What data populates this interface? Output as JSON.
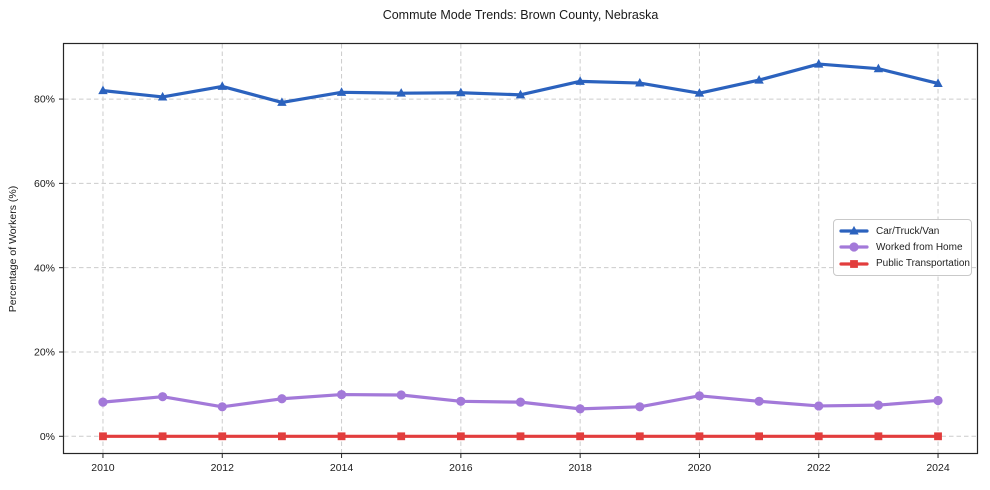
{
  "chart_data": {
    "type": "line",
    "title": "Commute Mode Trends: Brown County, Nebraska",
    "ylabel": "Percentage of Workers (%)",
    "xlabel": "",
    "x": [
      2010,
      2011,
      2012,
      2013,
      2014,
      2015,
      2016,
      2017,
      2018,
      2019,
      2020,
      2021,
      2022,
      2023,
      2024
    ],
    "series": [
      {
        "name": "Car/Truck/Van",
        "color": "#2b62be",
        "marker": "triangle",
        "values": [
          82.0,
          80.5,
          83.0,
          79.2,
          81.6,
          81.4,
          81.5,
          81.0,
          84.2,
          83.8,
          81.4,
          84.5,
          88.3,
          87.2,
          83.7
        ]
      },
      {
        "name": "Worked from Home",
        "color": "#a379d9",
        "marker": "circle",
        "values": [
          8.1,
          9.4,
          7.0,
          8.9,
          9.9,
          9.8,
          8.3,
          8.1,
          6.5,
          7.0,
          9.6,
          8.3,
          7.2,
          7.4,
          8.5
        ]
      },
      {
        "name": "Public Transportation",
        "color": "#e23d3d",
        "marker": "square",
        "values": [
          0.0,
          0.0,
          0.0,
          0.0,
          0.0,
          0.0,
          0.0,
          0.0,
          0.0,
          0.0,
          0.0,
          0.0,
          0.0,
          0.0,
          0.0
        ]
      }
    ],
    "y_tick_values": [
      0,
      20,
      40,
      60,
      80
    ],
    "y_tick_labels": [
      "0%",
      "20%",
      "40%",
      "60%",
      "80%"
    ],
    "x_tick_values": [
      2010,
      2012,
      2014,
      2016,
      2018,
      2020,
      2022,
      2024
    ],
    "x_tick_labels": [
      "2010",
      "2012",
      "2014",
      "2016",
      "2018",
      "2020",
      "2022",
      "2024"
    ],
    "ylim": [
      -4.2,
      93.3
    ],
    "xlim": [
      2009.33,
      2024.67
    ],
    "grid": true,
    "legend_position": "center-right",
    "colors": {
      "grid": "#cccccc",
      "axis": "#262626",
      "tick_text": "#1a1a1a",
      "background": "#ffffff"
    }
  }
}
